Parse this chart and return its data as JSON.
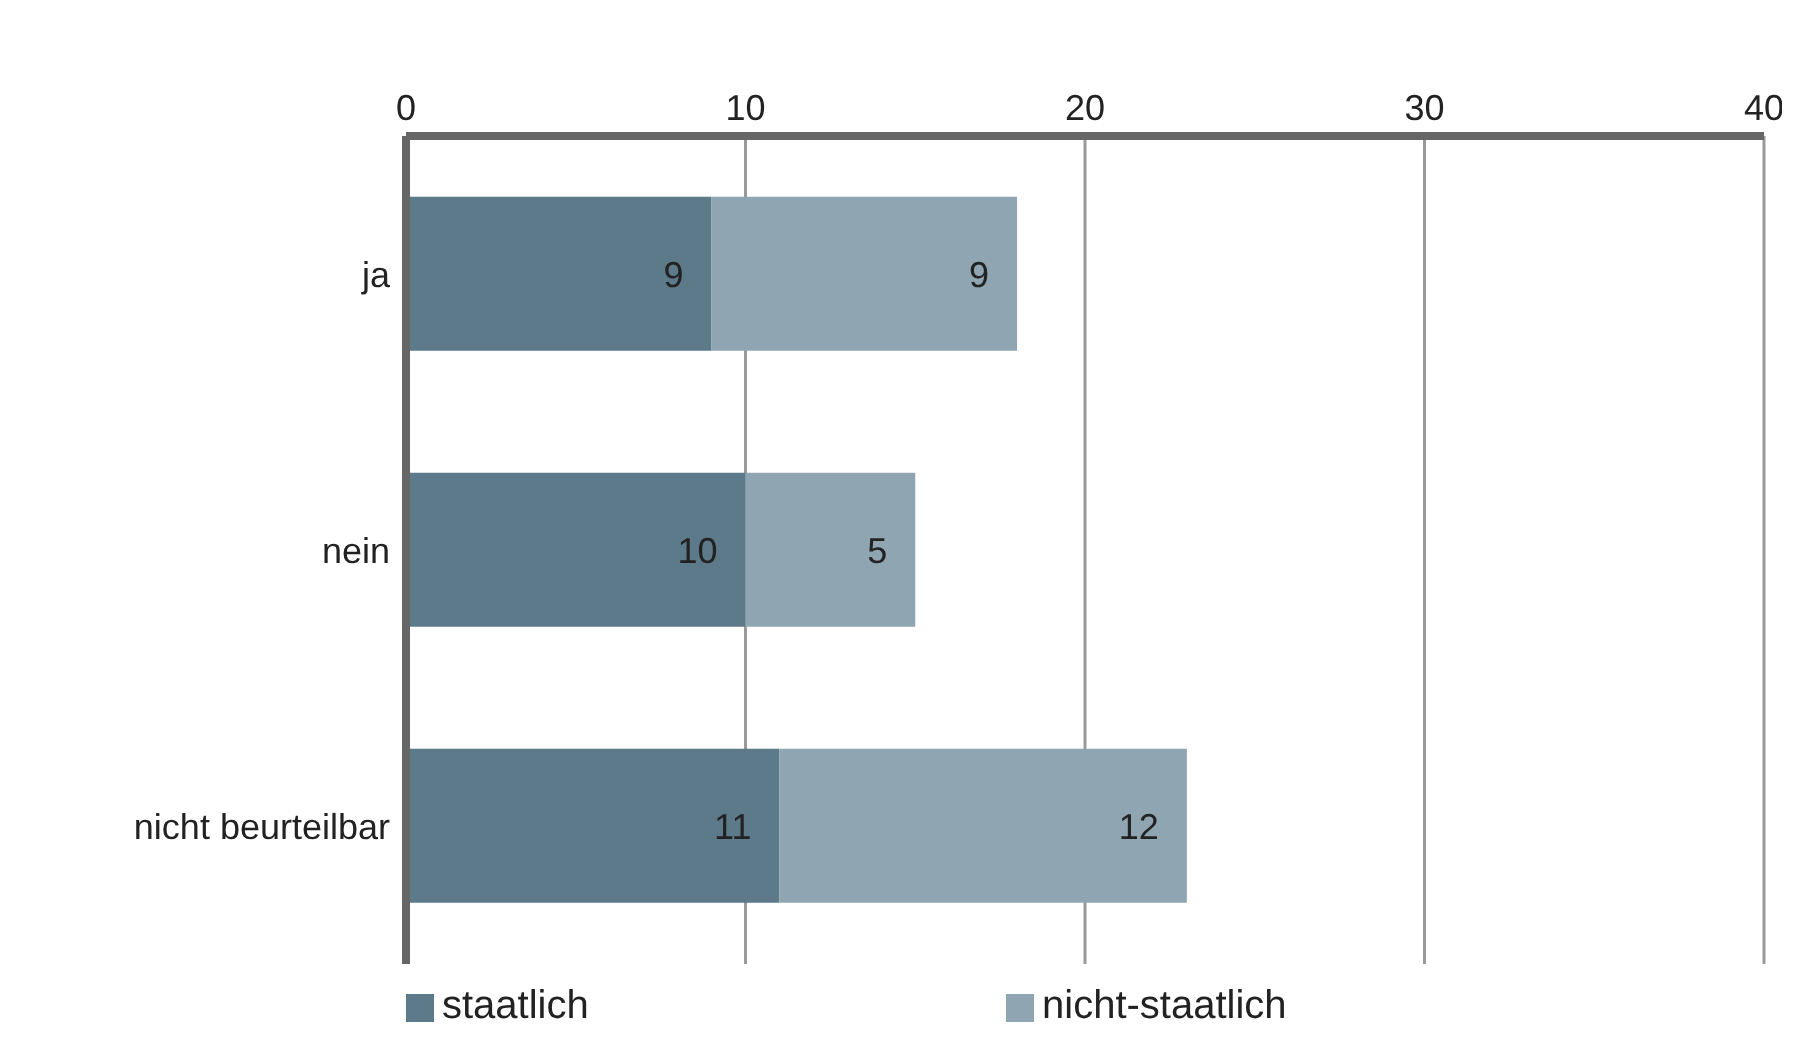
{
  "chart_data": {
    "type": "bar",
    "orientation": "horizontal",
    "stacked": true,
    "categories": [
      "ja",
      "nein",
      "nicht beurteilbar"
    ],
    "series": [
      {
        "name": "staatlich",
        "color": "#5d7a8b",
        "values": [
          9,
          10,
          11
        ]
      },
      {
        "name": "nicht-staatlich",
        "color": "#8fa6b2",
        "values": [
          9,
          5,
          12
        ]
      }
    ],
    "xlim": [
      0,
      40
    ],
    "xticks": [
      0,
      10,
      20,
      30,
      40
    ],
    "grid": "x",
    "legend": "bottom",
    "data_labels": true
  }
}
